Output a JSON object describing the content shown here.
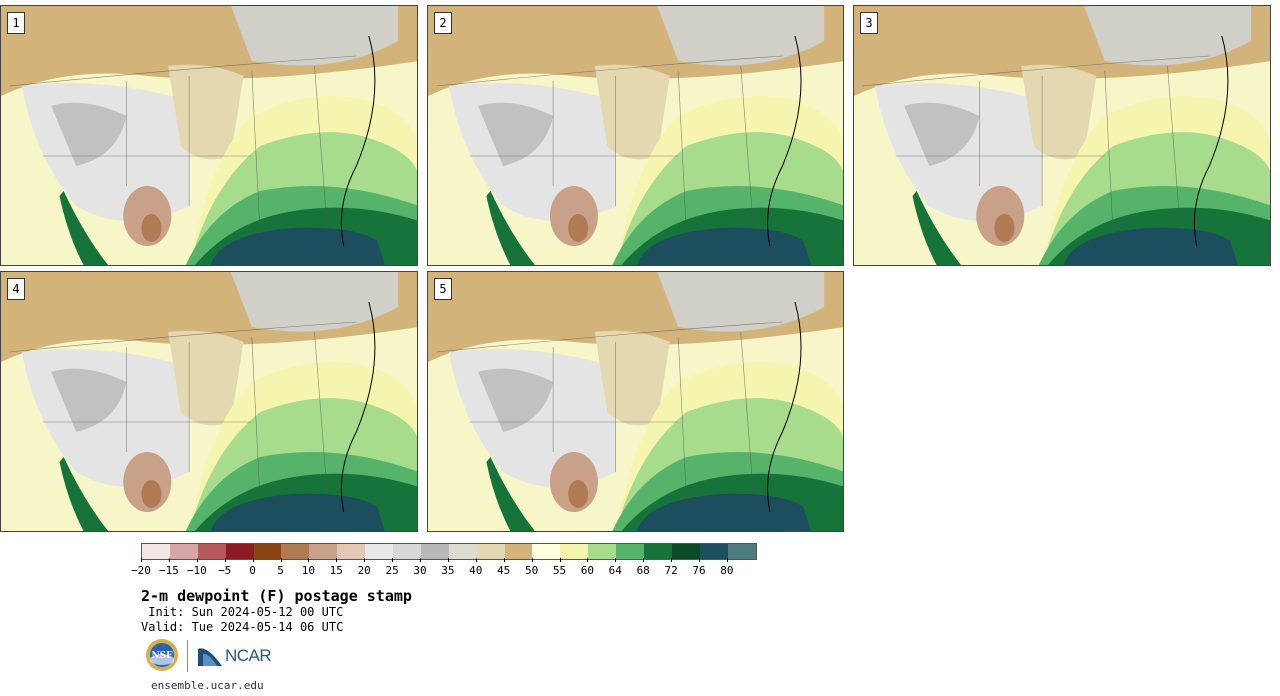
{
  "panels": [
    {
      "label": "1"
    },
    {
      "label": "2"
    },
    {
      "label": "3"
    },
    {
      "label": "4"
    },
    {
      "label": "5"
    }
  ],
  "colorbar": {
    "colors": [
      "#f3e6e6",
      "#d7a6a6",
      "#b5595b",
      "#8b1c23",
      "#8b4513",
      "#b07a52",
      "#c9a088",
      "#e0c8b4",
      "#e9e9e9",
      "#d8d8d8",
      "#b8b8b8",
      "#dedcd0",
      "#e3d8b0",
      "#d2b47a",
      "#fdfde0",
      "#f5f5b0",
      "#a6dc8c",
      "#55b46a",
      "#16743a",
      "#0c4a2a",
      "#1c4e5e",
      "#4f7c80"
    ],
    "tick_labels": [
      "−20",
      "−15",
      "−10",
      "−5",
      "0",
      "5",
      "10",
      "15",
      "20",
      "25",
      "30",
      "35",
      "40",
      "45",
      "50",
      "55",
      "60",
      "64",
      "68",
      "72",
      "76",
      "80"
    ]
  },
  "title": "2-m dewpoint (F) postage stamp",
  "init": " Init: Sun 2024-05-12 00 UTC",
  "valid": "Valid: Tue 2024-05-14 06 UTC",
  "logos": {
    "nsf": "NSF",
    "ncar": "NCAR"
  },
  "website": "ensemble.ucar.edu"
}
